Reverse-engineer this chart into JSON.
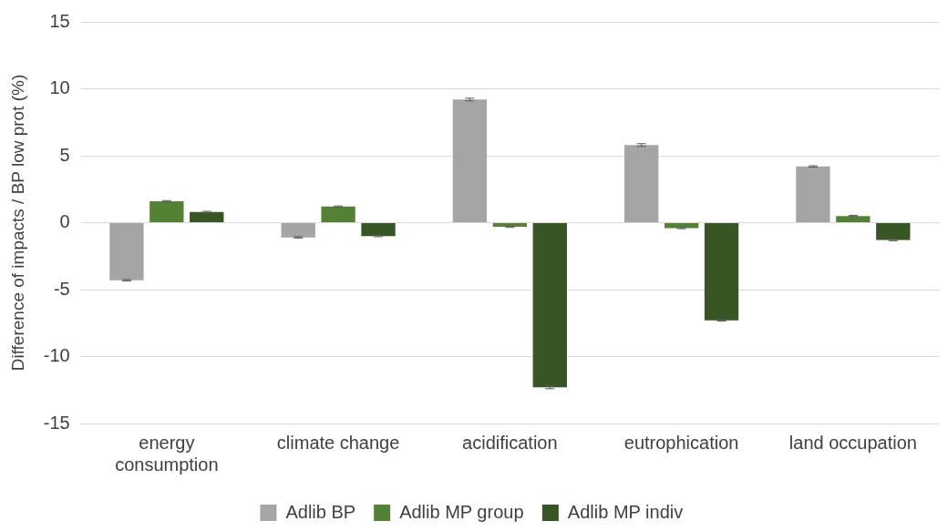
{
  "chart_data": {
    "type": "bar",
    "ylabel": "Difference of impacts / BP low prot (%)",
    "categories": [
      "energy consumption",
      "climate change",
      "acidification",
      "eutrophication",
      "land occupation"
    ],
    "series": [
      {
        "name": "Adlib BP",
        "color": "#a5a5a5",
        "values": [
          -4.3,
          -1.1,
          9.2,
          5.8,
          4.2
        ],
        "errors": [
          0.05,
          0.05,
          0.1,
          0.1,
          0.05
        ]
      },
      {
        "name": "Adlib MP group",
        "color": "#548235",
        "values": [
          1.6,
          1.2,
          -0.3,
          -0.4,
          0.5
        ],
        "errors": [
          0.05,
          0.05,
          0.05,
          0.05,
          0.05
        ]
      },
      {
        "name": "Adlib MP indiv",
        "color": "#375623",
        "values": [
          0.8,
          -1.0,
          -12.3,
          -7.3,
          -1.3
        ],
        "errors": [
          0.05,
          0.05,
          0.1,
          0.05,
          0.05
        ]
      }
    ],
    "ylim": [
      -15,
      15
    ],
    "yticks": [
      -15,
      -10,
      -5,
      0,
      5,
      10,
      15
    ],
    "grid": "y",
    "legend": "bottom"
  }
}
